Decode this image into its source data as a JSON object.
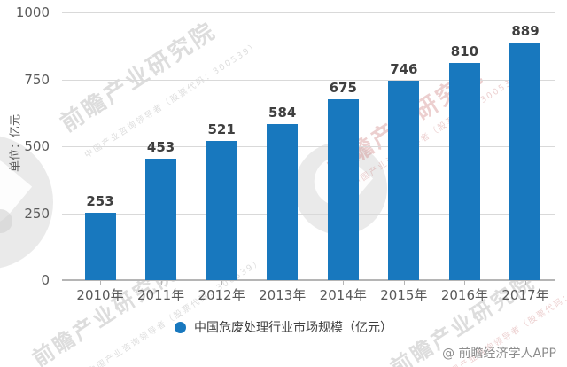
{
  "chart_data": {
    "type": "bar",
    "title": "",
    "categories": [
      "2010年",
      "2011年",
      "2012年",
      "2013年",
      "2014年",
      "2015年",
      "2016年",
      "2017年"
    ],
    "values": [
      253,
      453,
      521,
      584,
      675,
      746,
      810,
      889
    ],
    "series": [
      {
        "name": "中国危废处理行业市场规模（亿元）",
        "values": [
          253,
          453,
          521,
          584,
          675,
          746,
          810,
          889
        ]
      }
    ],
    "xlabel": "",
    "ylabel": "单位：亿元",
    "ylim": [
      0,
      1000
    ],
    "yticks": [
      0,
      250,
      500,
      750,
      1000
    ],
    "grid": true,
    "legend_position": "bottom",
    "bar_color": "#1878be"
  },
  "legend": {
    "marker_color": "#1878be",
    "label": "中国危废处理行业市场规模（亿元）"
  },
  "footer": {
    "credit": "@ 前瞻经济学人APP"
  },
  "watermark": {
    "brand": "前瞻产业研究院",
    "tagline": "中国产业咨询领导者（股票代码：300539）"
  },
  "colors": {
    "bar": "#1878be",
    "axis_text": "#595959",
    "value_text": "#3f3f3f",
    "gridline": "#d9d9d9",
    "axis_line": "#b5b5b5",
    "legend_text": "#3f3f3f",
    "credit_text": "#8c8c8c",
    "watermark_gray": "#a5a5a5",
    "watermark_pink": "#cd8282"
  }
}
